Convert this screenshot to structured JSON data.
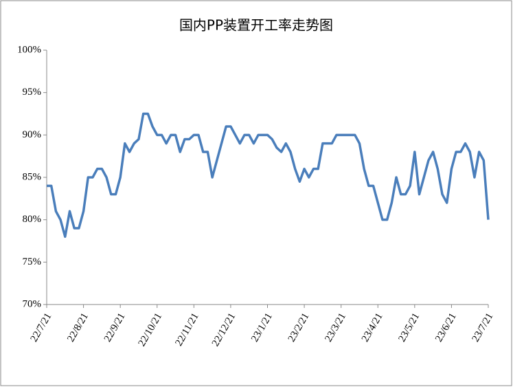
{
  "chart_data": {
    "type": "line",
    "title": "国内PP装置开工率走势图",
    "categories": [
      "22/7/21",
      null,
      null,
      null,
      null,
      null,
      null,
      null,
      "22/8/21",
      null,
      null,
      null,
      null,
      null,
      null,
      null,
      "22/9/21",
      null,
      null,
      null,
      null,
      null,
      null,
      null,
      "22/10/21",
      null,
      null,
      null,
      null,
      null,
      null,
      null,
      "22/11/21",
      null,
      null,
      null,
      null,
      null,
      null,
      null,
      "22/12/21",
      null,
      null,
      null,
      null,
      null,
      null,
      null,
      "23/1/21",
      null,
      null,
      null,
      null,
      null,
      null,
      null,
      "23/2/21",
      null,
      null,
      null,
      null,
      null,
      null,
      null,
      "23/3/21",
      null,
      null,
      null,
      null,
      null,
      null,
      null,
      "23/4/21",
      null,
      null,
      null,
      null,
      null,
      null,
      null,
      "23/5/21",
      null,
      null,
      null,
      null,
      null,
      null,
      null,
      "23/6/21",
      null,
      null,
      null,
      null,
      null,
      null,
      null,
      "23/7/21"
    ],
    "values": [
      84,
      84,
      81,
      80,
      78,
      81,
      79,
      79,
      81,
      85,
      85,
      86,
      86,
      85,
      83,
      83,
      85,
      89,
      88,
      89,
      89.5,
      92.5,
      92.5,
      91,
      90,
      90,
      89,
      90,
      90,
      88,
      89.5,
      89.5,
      90,
      90,
      88,
      88,
      85,
      87,
      89,
      91,
      91,
      90,
      89,
      90,
      90,
      89,
      90,
      90,
      90,
      89.5,
      88.5,
      88,
      89,
      88,
      86,
      84.5,
      86,
      85,
      86,
      86,
      89,
      89,
      89,
      90,
      90,
      90,
      90,
      90,
      89,
      86,
      84,
      84,
      82,
      80,
      80,
      82,
      85,
      83,
      83,
      84,
      88,
      83,
      85,
      87,
      88,
      86,
      83,
      82,
      86,
      88,
      88,
      89,
      88,
      85,
      88,
      87,
      80
    ],
    "color": "#4a7ebb",
    "ylim": [
      70,
      100
    ],
    "yticks": [
      {
        "value": 70,
        "label": "70%"
      },
      {
        "value": 75,
        "label": "75%"
      },
      {
        "value": 80,
        "label": "80%"
      },
      {
        "value": 85,
        "label": "85%"
      },
      {
        "value": 90,
        "label": "90%"
      },
      {
        "value": 95,
        "label": "95%"
      },
      {
        "value": 100,
        "label": "100%"
      }
    ]
  }
}
